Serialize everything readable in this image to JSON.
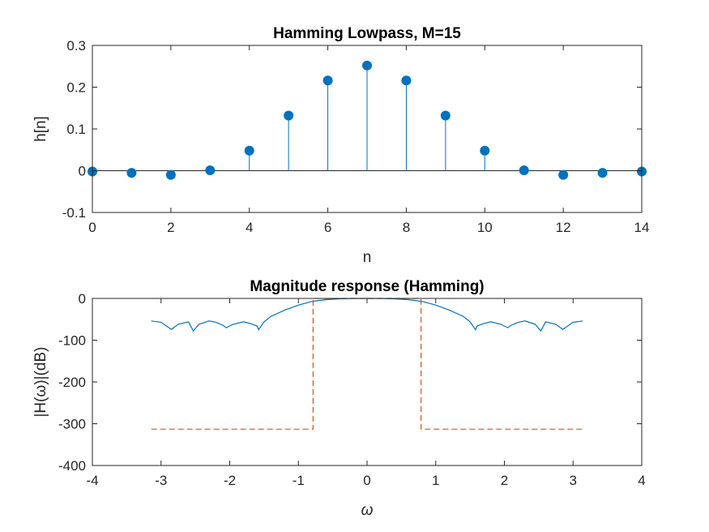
{
  "chart_data": [
    {
      "type": "stem",
      "title": "Hamming Lowpass, M=15",
      "xlabel": "n",
      "ylabel": "h[n]",
      "xlim": [
        0,
        14
      ],
      "ylim": [
        -0.1,
        0.3
      ],
      "xticks": [
        "0",
        "2",
        "4",
        "6",
        "8",
        "10",
        "12",
        "14"
      ],
      "yticks": [
        "-0.1",
        "0",
        "0.1",
        "0.2",
        "0.3"
      ],
      "grid": false,
      "color": "#0072BD",
      "x": [
        0,
        1,
        2,
        3,
        4,
        5,
        6,
        7,
        8,
        9,
        10,
        11,
        12,
        13,
        14
      ],
      "values": [
        -0.002,
        -0.005,
        -0.01,
        0.001,
        0.048,
        0.132,
        0.216,
        0.252,
        0.216,
        0.132,
        0.048,
        0.001,
        -0.01,
        -0.005,
        -0.002
      ]
    },
    {
      "type": "line",
      "title": "Magnitude response (Hamming)",
      "xlabel": "ω",
      "ylabel": "|H(ω)|(dB)",
      "xlim": [
        -4,
        4
      ],
      "ylim": [
        -400,
        0
      ],
      "xticks": [
        "-4",
        "-3",
        "-2",
        "-1",
        "0",
        "1",
        "2",
        "3",
        "4"
      ],
      "yticks": [
        "-400",
        "-300",
        "-200",
        "-100",
        "0"
      ],
      "grid": false,
      "series": [
        {
          "style": "solid",
          "color": "#0072BD",
          "x": [
            -3.1416,
            -3.0,
            -2.85,
            -2.75,
            -2.6,
            -2.53,
            -2.45,
            -2.3,
            -2.2,
            -2.1,
            -2.05,
            -1.95,
            -1.8,
            -1.7,
            -1.6,
            -1.58,
            -1.5,
            -1.4,
            -1.2,
            -1.0,
            -0.8,
            -0.6,
            -0.4,
            -0.2,
            0.0,
            0.2,
            0.4,
            0.6,
            0.8,
            1.0,
            1.2,
            1.4,
            1.5,
            1.58,
            1.6,
            1.7,
            1.8,
            1.95,
            2.05,
            2.1,
            2.2,
            2.3,
            2.45,
            2.53,
            2.6,
            2.75,
            2.85,
            3.0,
            3.1416
          ],
          "y": [
            -54,
            -57,
            -74,
            -62,
            -56,
            -78,
            -62,
            -54,
            -57,
            -64,
            -70,
            -62,
            -56,
            -60,
            -66,
            -75,
            -56,
            -43,
            -28,
            -16,
            -7,
            -3,
            -1,
            0,
            0,
            0,
            -1,
            -3,
            -7,
            -16,
            -28,
            -43,
            -56,
            -75,
            -66,
            -60,
            -56,
            -62,
            -70,
            -64,
            -57,
            -54,
            -62,
            -78,
            -56,
            -62,
            -74,
            -57,
            -54
          ]
        },
        {
          "style": "dashed",
          "color": "#D95319",
          "x": [
            -3.1416,
            -0.7854,
            -0.7854,
            0.7854,
            0.7854,
            3.1416
          ],
          "y": [
            -313,
            -313,
            0,
            0,
            -313,
            -313
          ]
        }
      ]
    }
  ]
}
